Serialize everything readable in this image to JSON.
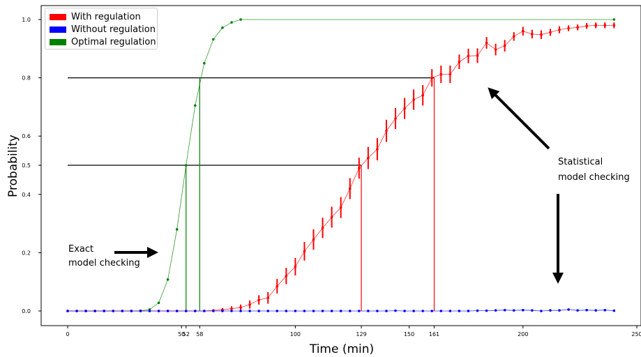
{
  "chart_data": {
    "type": "line",
    "xlabel": "Time (min)",
    "ylabel": "Probability",
    "xlim": [
      -10,
      250
    ],
    "ylim": [
      -0.05,
      1.05
    ],
    "x_ticks": [
      0,
      50,
      52,
      58,
      100,
      129,
      150,
      161,
      200,
      250
    ],
    "y_ticks": [
      0.0,
      0.2,
      0.4,
      0.5,
      0.6,
      0.8,
      1.0
    ],
    "grid": false,
    "legend_position": "top-left",
    "legend": [
      {
        "label": "With regulation",
        "color": "#ff0000"
      },
      {
        "label": "Without regulation",
        "color": "#0000ff"
      },
      {
        "label": "Optimal regulation",
        "color": "#008000"
      }
    ],
    "series": [
      {
        "name": "Optimal regulation",
        "color": "#008000",
        "x": [
          0,
          4,
          8,
          12,
          16,
          20,
          24,
          28,
          32,
          36,
          40,
          44,
          48,
          52,
          56,
          60,
          64,
          68,
          72,
          76,
          240
        ],
        "y": [
          0,
          0,
          0,
          0,
          0,
          0,
          0,
          0,
          0.001,
          0.005,
          0.028,
          0.108,
          0.28,
          0.5,
          0.705,
          0.85,
          0.932,
          0.972,
          0.99,
          1.0,
          1.0
        ]
      },
      {
        "name": "With regulation",
        "color": "#ff0000",
        "x": [
          0,
          4,
          8,
          12,
          16,
          20,
          24,
          28,
          32,
          36,
          40,
          44,
          48,
          52,
          56,
          60,
          64,
          68,
          72,
          76,
          80,
          84,
          88,
          92,
          96,
          100,
          104,
          108,
          112,
          116,
          120,
          124,
          128,
          132,
          136,
          140,
          144,
          148,
          152,
          156,
          160,
          164,
          168,
          172,
          176,
          180,
          184,
          188,
          192,
          196,
          200,
          204,
          208,
          212,
          216,
          220,
          224,
          228,
          232,
          236,
          240
        ],
        "y": [
          0,
          0,
          0,
          0,
          0,
          0,
          0,
          0,
          0,
          0,
          0,
          0,
          0,
          0,
          0,
          0,
          0.002,
          0.004,
          0.008,
          0.012,
          0.022,
          0.038,
          0.045,
          0.085,
          0.12,
          0.152,
          0.205,
          0.245,
          0.285,
          0.322,
          0.355,
          0.42,
          0.49,
          0.525,
          0.555,
          0.618,
          0.66,
          0.695,
          0.725,
          0.74,
          0.8,
          0.812,
          0.812,
          0.855,
          0.875,
          0.876,
          0.92,
          0.897,
          0.91,
          0.942,
          0.96,
          0.95,
          0.948,
          0.956,
          0.965,
          0.97,
          0.973,
          0.978,
          0.98,
          0.98,
          0.98
        ],
        "err": [
          0,
          0,
          0,
          0,
          0,
          0,
          0,
          0,
          0,
          0,
          0,
          0,
          0,
          0,
          0,
          0,
          0.004,
          0.006,
          0.008,
          0.01,
          0.014,
          0.016,
          0.02,
          0.025,
          0.028,
          0.03,
          0.032,
          0.035,
          0.035,
          0.036,
          0.036,
          0.036,
          0.036,
          0.038,
          0.038,
          0.038,
          0.036,
          0.036,
          0.035,
          0.035,
          0.03,
          0.03,
          0.03,
          0.025,
          0.025,
          0.025,
          0.02,
          0.02,
          0.02,
          0.015,
          0.015,
          0.015,
          0.015,
          0.012,
          0.012,
          0.01,
          0.01,
          0.01,
          0.01,
          0.01,
          0.01
        ]
      },
      {
        "name": "Without regulation",
        "color": "#0000ff",
        "x": [
          0,
          4,
          8,
          12,
          16,
          20,
          24,
          28,
          32,
          36,
          40,
          44,
          48,
          52,
          56,
          60,
          64,
          68,
          72,
          76,
          80,
          84,
          88,
          92,
          96,
          100,
          104,
          108,
          112,
          116,
          120,
          124,
          128,
          132,
          136,
          140,
          144,
          148,
          152,
          156,
          160,
          164,
          168,
          172,
          176,
          180,
          184,
          188,
          192,
          196,
          200,
          204,
          208,
          212,
          216,
          220,
          224,
          228,
          232,
          236,
          240
        ],
        "y": [
          0,
          0,
          0,
          0,
          0,
          0,
          0,
          0,
          0,
          0,
          0,
          0,
          0,
          0,
          0,
          0,
          0,
          0,
          0,
          0,
          0,
          0,
          0,
          0,
          0,
          0,
          0,
          0,
          0,
          0,
          0,
          0,
          0,
          0,
          0,
          0,
          0.001,
          0,
          0,
          0,
          0,
          0,
          0,
          0,
          0,
          0.001,
          0.001,
          0.002,
          0.003,
          0.002,
          0.003,
          0.002,
          0,
          0.002,
          0.002,
          0.005,
          0.002,
          0.003,
          0.002,
          0.003,
          0.001
        ]
      }
    ],
    "reference_lines": [
      {
        "y": 0.8,
        "x_from": 0,
        "x_to": 161,
        "color": "#000000"
      },
      {
        "y": 0.5,
        "x_from": 0,
        "x_to": 129,
        "color": "#000000"
      },
      {
        "x": 52,
        "y_to": 0.5,
        "color": "#008000"
      },
      {
        "x": 58,
        "y_to": 0.8,
        "color": "#008000"
      },
      {
        "x": 129,
        "y_to": 0.5,
        "color": "#ff0000"
      },
      {
        "x": 161,
        "y_to": 0.8,
        "color": "#ff0000"
      }
    ],
    "annotations": [
      {
        "text_lines": [
          "Exact",
          "model checking"
        ],
        "arrow": "right"
      },
      {
        "text_lines": [
          "Statistical",
          "model checking"
        ],
        "arrow": "up-left and down"
      }
    ]
  }
}
